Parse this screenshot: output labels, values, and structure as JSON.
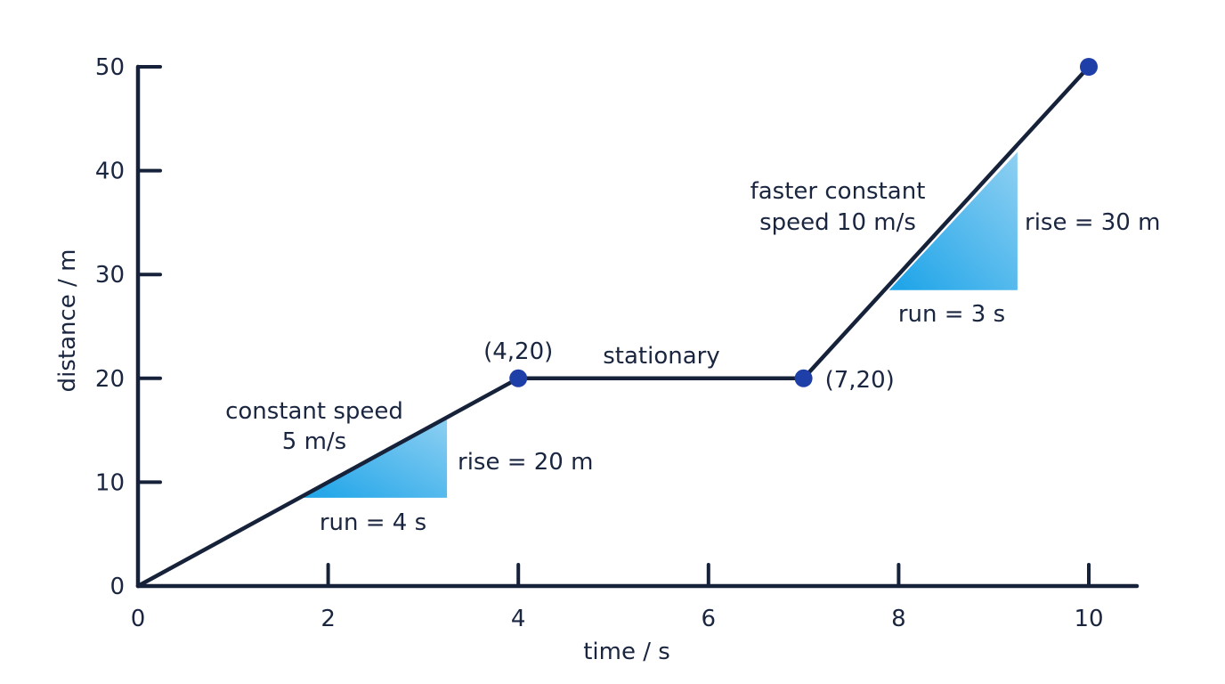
{
  "chart_data": {
    "type": "line",
    "xlabel": "time / s",
    "ylabel": "distance / m",
    "xlim": [
      0,
      10
    ],
    "ylim": [
      0,
      50
    ],
    "x_ticks": [
      "0",
      "2",
      "4",
      "6",
      "8",
      "10"
    ],
    "y_ticks": [
      "0",
      "10",
      "20",
      "30",
      "40",
      "50"
    ],
    "grid": false,
    "series": [
      {
        "x": [
          0,
          4,
          7,
          10
        ],
        "y": [
          0,
          20,
          20,
          50
        ]
      }
    ],
    "highlighted_points": [
      {
        "x": 4,
        "y": 20,
        "label": "(4,20)"
      },
      {
        "x": 7,
        "y": 20,
        "label": "(7,20)"
      },
      {
        "x": 10,
        "y": 50,
        "label": ""
      }
    ],
    "slope_triangles": [
      {
        "x0": 1.7,
        "x1": 3.25,
        "y0": 8.5,
        "y1": 16.3,
        "run_label": "run = 4 s",
        "rise_label": "rise = 20 m"
      },
      {
        "x0": 7.9,
        "x1": 9.25,
        "y0": 28.5,
        "y1": 41.8,
        "run_label": "run = 3 s",
        "rise_label": "rise = 30 m"
      }
    ],
    "annotations": [
      {
        "lines": [
          "constant speed",
          "5 m/s"
        ]
      },
      {
        "lines": [
          "stationary"
        ]
      },
      {
        "lines": [
          "faster constant",
          "speed 10 m/s"
        ]
      }
    ],
    "colors": {
      "axis": "#16213a",
      "line": "#16213a",
      "point": "#1f3fa8",
      "triangle_light": "#8fd0f2",
      "triangle_dark": "#1ba3e8",
      "text": "#1a2540"
    }
  }
}
